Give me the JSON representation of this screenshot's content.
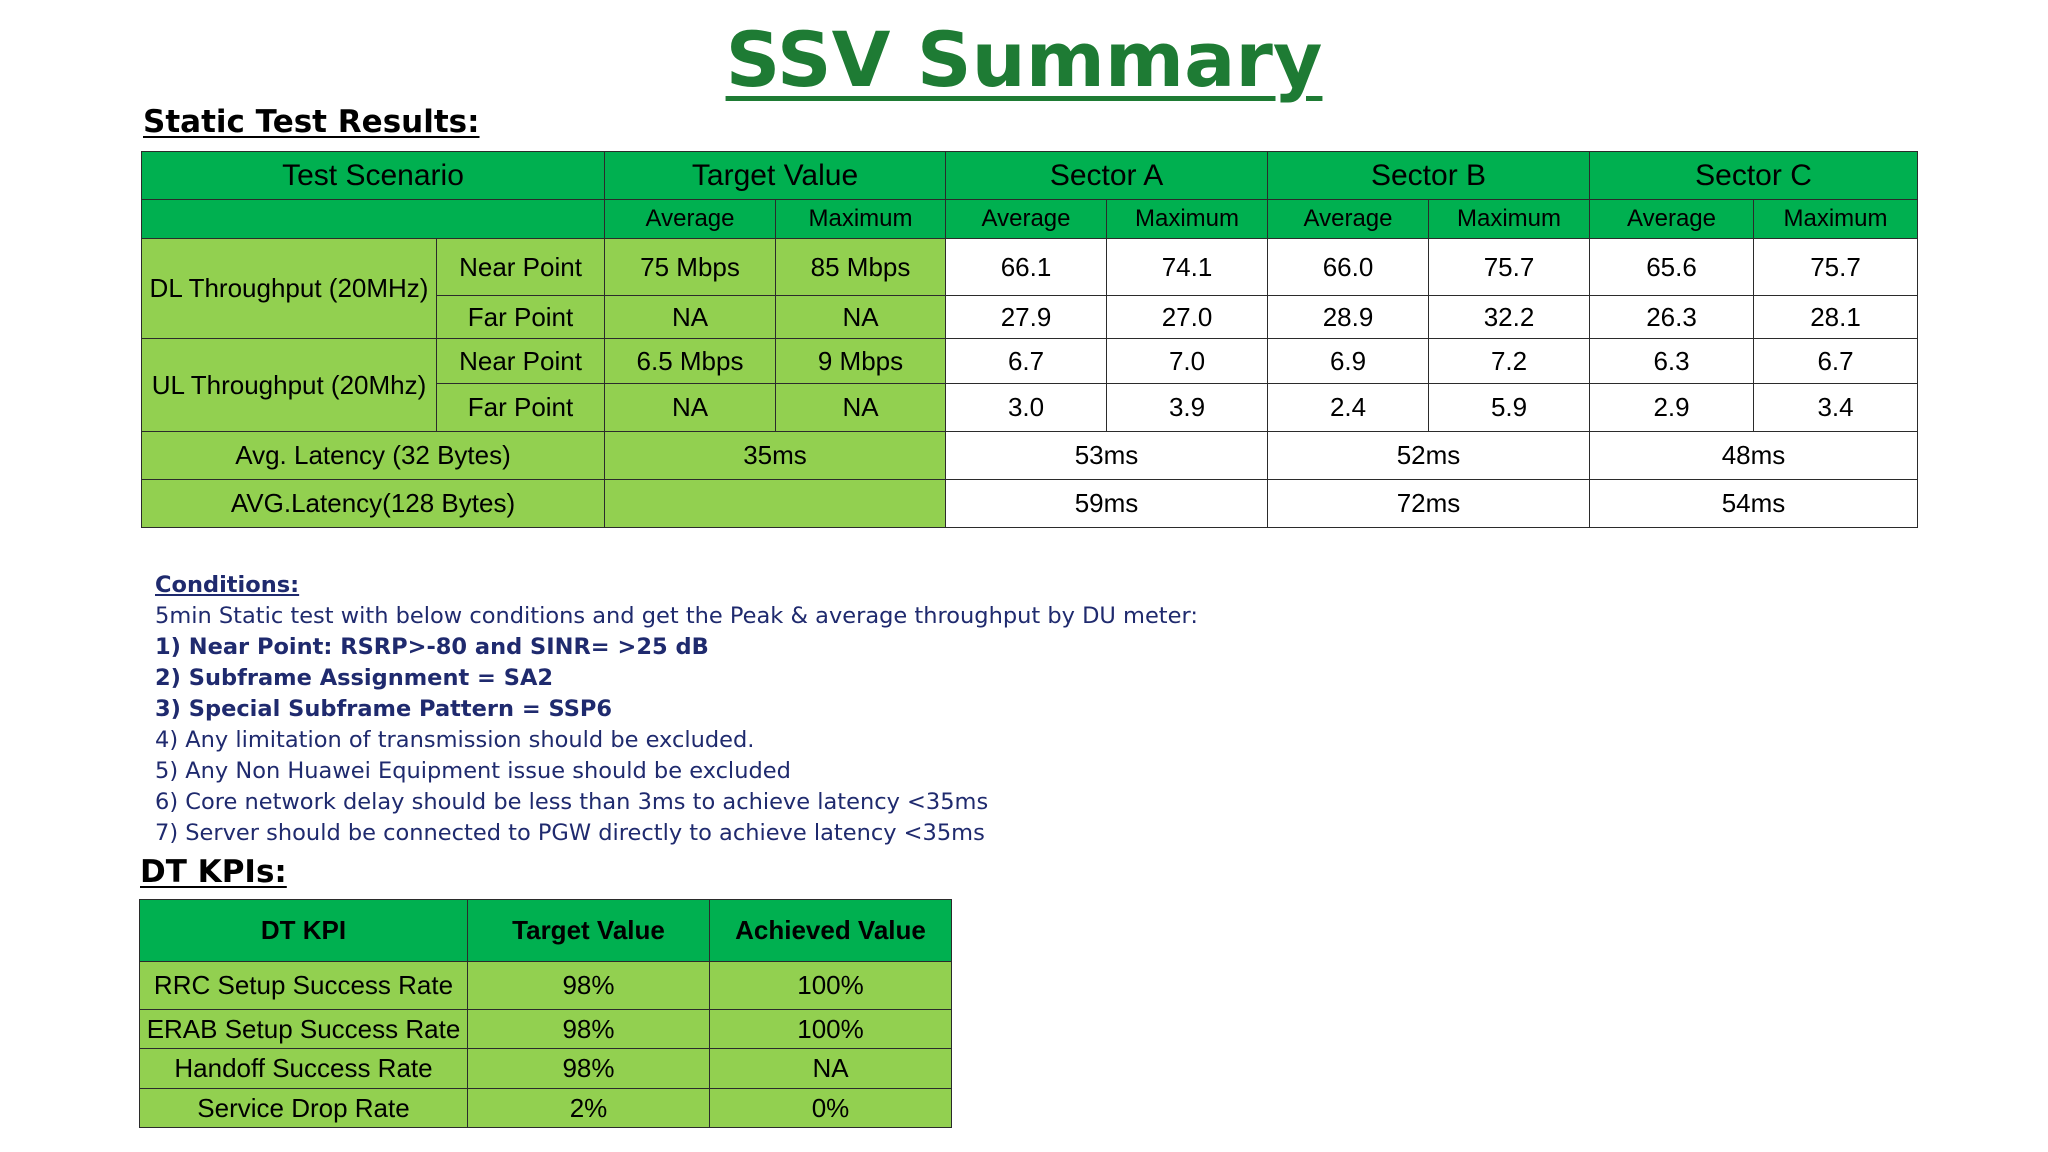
{
  "title": "SSV Summary",
  "static_heading": "Static Test Results:",
  "static_table": {
    "headers": {
      "test_scenario": "Test Scenario",
      "target_value": "Target Value",
      "sector_a": "Sector A",
      "sector_b": "Sector B",
      "sector_c": "Sector C"
    },
    "subheaders": [
      "Average",
      "Maximum",
      "Average",
      "Maximum",
      "Average",
      "Maximum",
      "Average",
      "Maximum"
    ],
    "dl": {
      "label": "DL Throughput (20MHz)",
      "near": {
        "point": "Near Point",
        "cells": [
          "75 Mbps",
          "85 Mbps",
          "66.1",
          "74.1",
          "66.0",
          "75.7",
          "65.6",
          "75.7"
        ]
      },
      "far": {
        "point": "Far Point",
        "cells": [
          "NA",
          "NA",
          "27.9",
          "27.0",
          "28.9",
          "32.2",
          "26.3",
          "28.1"
        ]
      }
    },
    "ul": {
      "label": "UL Throughput (20Mhz)",
      "near": {
        "point": "Near Point",
        "cells": [
          "6.5 Mbps",
          "9 Mbps",
          "6.7",
          "7.0",
          "6.9",
          "7.2",
          "6.3",
          "6.7"
        ]
      },
      "far": {
        "point": "Far Point",
        "cells": [
          "NA",
          "NA",
          "3.0",
          "3.9",
          "2.4",
          "5.9",
          "2.9",
          "3.4"
        ]
      }
    },
    "latency32": {
      "label": "Avg. Latency (32 Bytes)",
      "target": "35ms",
      "a": "53ms",
      "b": "52ms",
      "c": "48ms"
    },
    "latency128": {
      "label": "AVG.Latency(128 Bytes)",
      "target": "",
      "a": "59ms",
      "b": "72ms",
      "c": "54ms"
    }
  },
  "conditions": {
    "label": "Conditions:",
    "intro": "5min Static test with below conditions and get the Peak & average throughput by DU meter:",
    "items": [
      "1) Near Point: RSRP>-80 and SINR= >25 dB",
      "2) Subframe Assignment = SA2",
      "3) Special Subframe Pattern = SSP6",
      "4) Any limitation of transmission should be excluded.",
      "5) Any Non Huawei Equipment issue should be excluded",
      "6) Core network delay should be less than 3ms to achieve latency <35ms",
      "7) Server should be connected to PGW directly to achieve latency <35ms"
    ]
  },
  "dt_heading": "DT KPIs:",
  "dt_table": {
    "headers": [
      "DT KPI",
      "Target Value",
      "Achieved Value"
    ],
    "rows": [
      [
        "RRC Setup Success Rate",
        "98%",
        "100%"
      ],
      [
        "ERAB Setup Success Rate",
        "98%",
        "100%"
      ],
      [
        "Handoff Success Rate",
        "98%",
        "NA"
      ],
      [
        "Service Drop Rate",
        "2%",
        "0%"
      ]
    ]
  }
}
